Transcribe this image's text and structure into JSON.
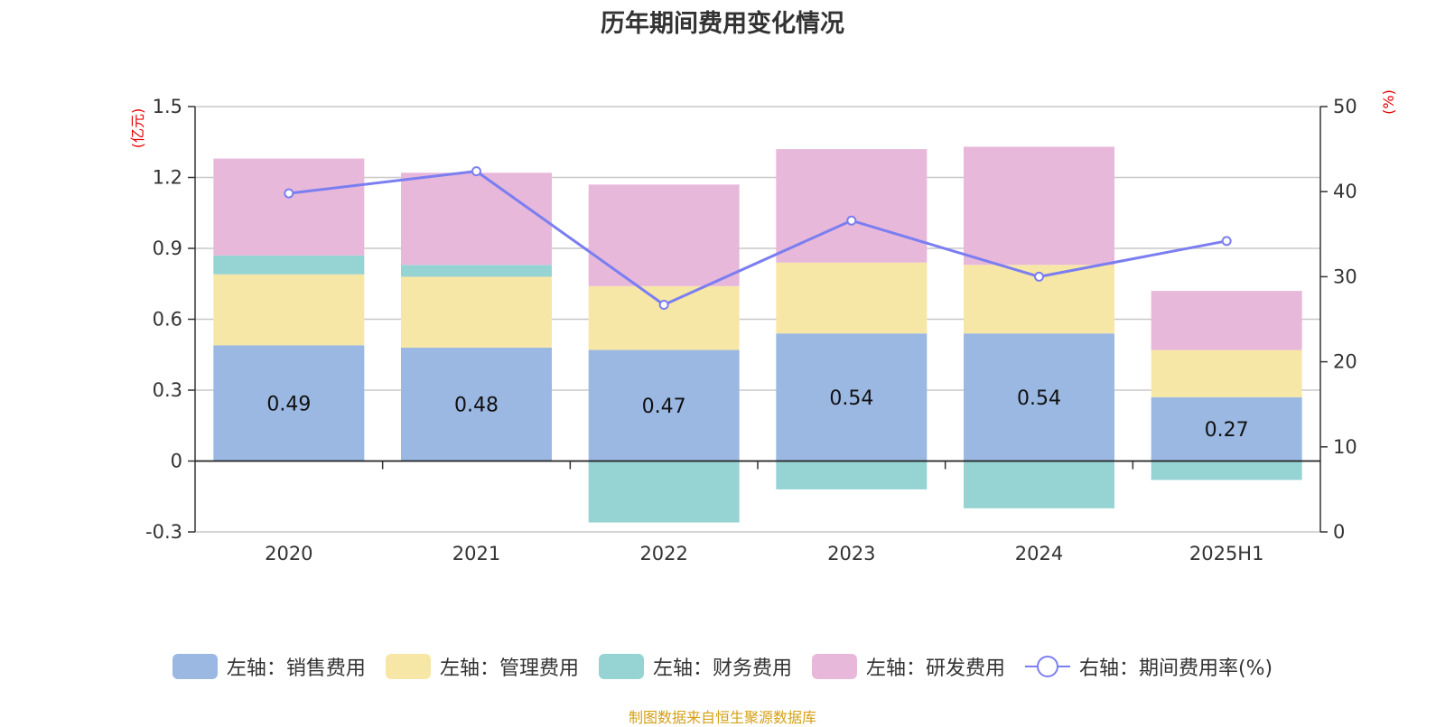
{
  "chart_data": {
    "type": "bar",
    "title": "历年期间费用变化情况",
    "categories": [
      "2020",
      "2021",
      "2022",
      "2023",
      "2024",
      "2025H1"
    ],
    "left_axis": {
      "unit": "(亿元)",
      "ylim": [
        -0.3,
        1.5
      ],
      "ticks": [
        "1.5",
        "1.2",
        "0.9",
        "0.6",
        "0.3",
        "0",
        "-0.3"
      ]
    },
    "right_axis": {
      "unit": "(%)",
      "ylim": [
        0,
        50
      ],
      "ticks": [
        "50",
        "40",
        "30",
        "20",
        "10",
        "0"
      ]
    },
    "grid": true,
    "legend_position": "bottom",
    "series": [
      {
        "name": "左轴：销售费用",
        "axis": "left",
        "type": "bar",
        "color": "#9bb8e2",
        "values": [
          0.49,
          0.48,
          0.47,
          0.54,
          0.54,
          0.27
        ],
        "data_labels": [
          "0.49",
          "0.48",
          "0.47",
          "0.54",
          "0.54",
          "0.27"
        ]
      },
      {
        "name": "左轴：管理费用",
        "axis": "left",
        "type": "bar",
        "color": "#f7e7a7",
        "values": [
          0.3,
          0.3,
          0.27,
          0.3,
          0.29,
          0.2
        ]
      },
      {
        "name": "左轴：财务费用",
        "axis": "left",
        "type": "bar",
        "color": "#96d3d3",
        "values": [
          0.08,
          0.05,
          -0.26,
          -0.12,
          -0.2,
          -0.08
        ]
      },
      {
        "name": "左轴：研发费用",
        "axis": "left",
        "type": "bar",
        "color": "#e7b8da",
        "values": [
          0.41,
          0.39,
          0.43,
          0.48,
          0.5,
          0.25
        ]
      },
      {
        "name": "右轴：期间费用率(%)",
        "axis": "right",
        "type": "line",
        "color": "#7b7ef0",
        "values": [
          39.8,
          42.4,
          26.7,
          36.6,
          30.0,
          34.2
        ]
      }
    ]
  },
  "footer": {
    "source": "制图数据来自恒生聚源数据库"
  }
}
